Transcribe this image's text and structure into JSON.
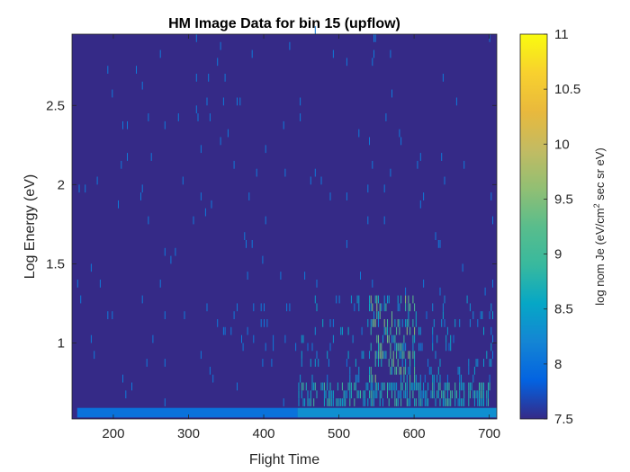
{
  "chart_data": {
    "type": "heatmap",
    "title": "HM Image Data for bin 15 (upflow)",
    "xlabel": "Flight Time",
    "ylabel": "Log Energy (eV)",
    "xlim": [
      145,
      710
    ],
    "ylim": [
      0.52,
      2.95
    ],
    "x_ticks": [
      200,
      300,
      400,
      500,
      600,
      700
    ],
    "y_ticks": [
      1,
      1.5,
      2,
      2.5
    ],
    "x_tick_labels": [
      "200",
      "300",
      "400",
      "500",
      "600",
      "700"
    ],
    "y_tick_labels": [
      "1",
      "1.5",
      "2",
      "2.5"
    ],
    "colorbar": {
      "label_main": "log nom Je (eV/cm",
      "label_sup": "2",
      "label_tail": " sec sr eV)",
      "clim": [
        7.5,
        11
      ],
      "ticks": [
        7.5,
        8,
        8.5,
        9,
        9.5,
        10,
        10.5,
        11
      ],
      "tick_labels": [
        "7.5",
        "8",
        "8.5",
        "9",
        "9.5",
        "10",
        "10.5",
        "11"
      ],
      "colormap": "parula"
    },
    "background_value": 7.5,
    "bottom_band": {
      "x_start": 152,
      "x_end": 710,
      "y_low": 0.53,
      "y_high": 0.59,
      "value_left": 8.0,
      "value_right": 8.3,
      "x_change": 445
    },
    "activity": {
      "x_start": 150,
      "x_end": 708,
      "x_step": 2,
      "active_zone": {
        "x_start": 445,
        "x_end": 700,
        "y_low": 0.6,
        "y_high": 0.75,
        "value": 9.0
      },
      "hotspot": {
        "x_start": 540,
        "x_end": 600,
        "y_low": 0.6,
        "y_high": 1.3,
        "value_peak": 9.6
      },
      "sparse_value": 8.1
    }
  },
  "colors": {
    "background": "#352a87",
    "axis": "#262626"
  }
}
